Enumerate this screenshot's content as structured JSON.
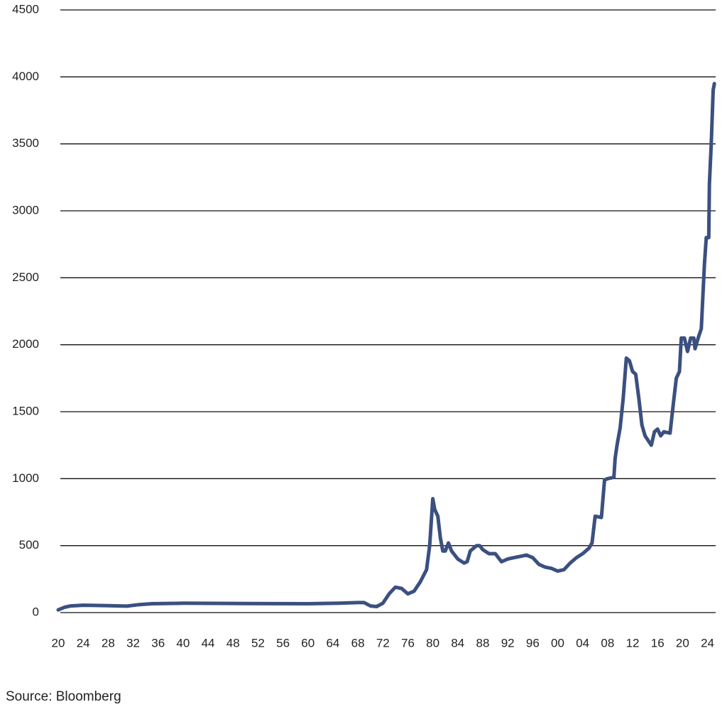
{
  "chart_data": {
    "type": "line",
    "source": "Source: Bloomberg",
    "x": [
      1920,
      1921,
      1922,
      1924,
      1928,
      1931,
      1933,
      1935,
      1940,
      1950,
      1960,
      1965,
      1968,
      1969,
      1970,
      1971,
      1972,
      1973,
      1974,
      1975,
      1976,
      1977,
      1978,
      1979,
      1979.5,
      1980.0,
      1980.3,
      1980.8,
      1981.2,
      1981.6,
      1982.0,
      1982.5,
      1983,
      1984,
      1985,
      1985.5,
      1986,
      1987,
      1987.5,
      1988,
      1989,
      1990,
      1991,
      1992,
      1993,
      1994,
      1995,
      1996,
      1997,
      1998,
      1999,
      2000,
      2001,
      2002,
      2003,
      2004,
      2005,
      2005.5,
      2006,
      2007,
      2007.5,
      2008,
      2009,
      2009.2,
      2009.5,
      2010,
      2010.5,
      2011,
      2011.5,
      2012,
      2012.5,
      2013,
      2013.5,
      2014,
      2015,
      2015.5,
      2016,
      2016.5,
      2017,
      2018,
      2018.5,
      2019,
      2019.5,
      2019.8,
      2020.3,
      2020.8,
      2021.3,
      2021.8,
      2022,
      2022.5,
      2023,
      2023.5,
      2023.8,
      2024.2,
      2024.3,
      2024.6,
      2024.9,
      2025.1
    ],
    "series": [
      {
        "color": "#3b5080",
        "values": [
          20,
          40,
          50,
          55,
          52,
          48,
          60,
          66,
          70,
          68,
          66,
          70,
          75,
          75,
          50,
          45,
          70,
          140,
          190,
          180,
          140,
          160,
          230,
          320,
          500,
          850,
          770,
          720,
          560,
          460,
          460,
          520,
          460,
          400,
          370,
          380,
          460,
          500,
          500,
          470,
          440,
          440,
          380,
          400,
          410,
          420,
          430,
          410,
          360,
          340,
          330,
          310,
          320,
          370,
          410,
          440,
          480,
          520,
          720,
          710,
          990,
          1000,
          1010,
          1150,
          1250,
          1380,
          1600,
          1900,
          1880,
          1800,
          1780,
          1600,
          1400,
          1320,
          1250,
          1350,
          1370,
          1320,
          1350,
          1340,
          1550,
          1750,
          1800,
          2050,
          2050,
          1950,
          2050,
          2050,
          1970,
          2050,
          2120,
          2600,
          2800,
          2800,
          3200,
          3500,
          3900,
          3950
        ]
      }
    ],
    "xlim": [
      1920,
      2025.3
    ],
    "ylim": [
      0,
      4500
    ],
    "yticks": [
      0,
      500,
      1000,
      1500,
      2000,
      2500,
      3000,
      3500,
      4000,
      4500
    ],
    "xticks": [
      {
        "value": 1920,
        "label": "20"
      },
      {
        "value": 1924,
        "label": "24"
      },
      {
        "value": 1928,
        "label": "28"
      },
      {
        "value": 1932,
        "label": "32"
      },
      {
        "value": 1936,
        "label": "36"
      },
      {
        "value": 1940,
        "label": "40"
      },
      {
        "value": 1944,
        "label": "44"
      },
      {
        "value": 1948,
        "label": "48"
      },
      {
        "value": 1952,
        "label": "52"
      },
      {
        "value": 1956,
        "label": "56"
      },
      {
        "value": 1960,
        "label": "60"
      },
      {
        "value": 1964,
        "label": "64"
      },
      {
        "value": 1968,
        "label": "68"
      },
      {
        "value": 1972,
        "label": "72"
      },
      {
        "value": 1976,
        "label": "76"
      },
      {
        "value": 1980,
        "label": "80"
      },
      {
        "value": 1984,
        "label": "84"
      },
      {
        "value": 1988,
        "label": "88"
      },
      {
        "value": 1992,
        "label": "92"
      },
      {
        "value": 1996,
        "label": "96"
      },
      {
        "value": 2000,
        "label": "00"
      },
      {
        "value": 2004,
        "label": "04"
      },
      {
        "value": 2008,
        "label": "08"
      },
      {
        "value": 2012,
        "label": "12"
      },
      {
        "value": 2016,
        "label": "16"
      },
      {
        "value": 2020,
        "label": "20"
      },
      {
        "value": 2024,
        "label": "24"
      }
    ],
    "grid": true
  }
}
